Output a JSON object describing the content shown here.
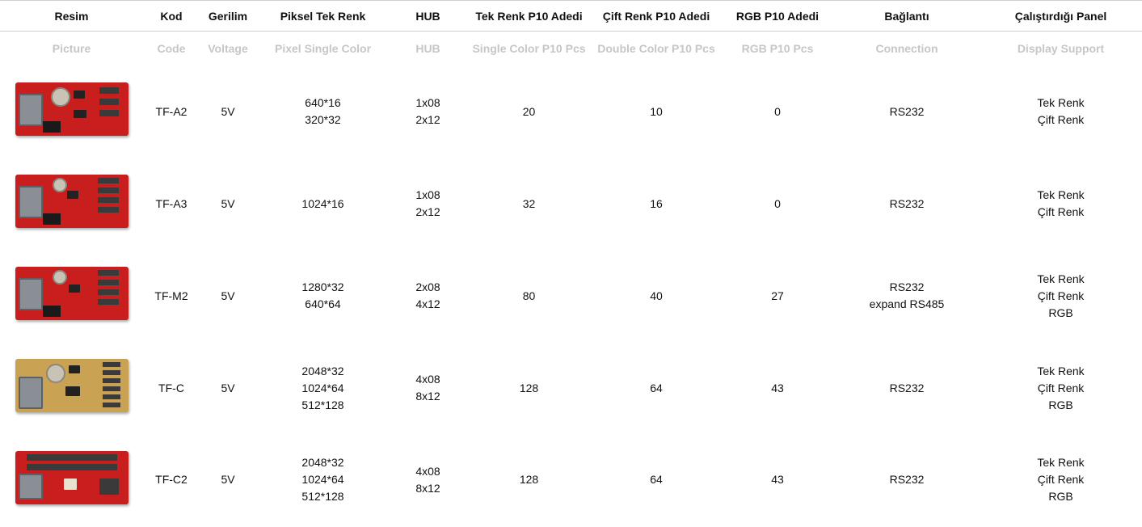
{
  "headers": {
    "tr": [
      "Resim",
      "Kod",
      "Gerilim",
      "Piksel Tek Renk",
      "HUB",
      "Tek Renk P10 Adedi",
      "Çift Renk P10 Adedi",
      "RGB P10 Adedi",
      "Bağlantı",
      "Çalıştırdığı Panel"
    ],
    "en": [
      "Picture",
      "Code",
      "Voltage",
      "Pixel Single Color",
      "HUB",
      "Single Color P10 Pcs",
      "Double Color P10 Pcs",
      "RGB P10 Pcs",
      "Connection",
      "Display Support"
    ]
  },
  "rows": [
    {
      "image": "controller-board-red",
      "code": "TF-A2",
      "voltage": "5V",
      "pixel": [
        "640*16",
        "320*32"
      ],
      "hub": [
        "1x08",
        "2x12"
      ],
      "single": "20",
      "double": "10",
      "rgb": "0",
      "connection": [
        "RS232"
      ],
      "support": [
        "Tek Renk",
        "Çift Renk"
      ]
    },
    {
      "image": "controller-board-red",
      "code": "TF-A3",
      "voltage": "5V",
      "pixel": [
        "1024*16"
      ],
      "hub": [
        "1x08",
        "2x12"
      ],
      "single": "32",
      "double": "16",
      "rgb": "0",
      "connection": [
        "RS232"
      ],
      "support": [
        "Tek Renk",
        "Çift Renk"
      ]
    },
    {
      "image": "controller-board-red",
      "code": "TF-M2",
      "voltage": "5V",
      "pixel": [
        "1280*32",
        "640*64"
      ],
      "hub": [
        "2x08",
        "4x12"
      ],
      "single": "80",
      "double": "40",
      "rgb": "27",
      "connection": [
        "RS232",
        "expand RS485"
      ],
      "support": [
        "Tek Renk",
        "Çift Renk",
        "RGB"
      ]
    },
    {
      "image": "controller-board-gold",
      "code": "TF-C",
      "voltage": "5V",
      "pixel": [
        "2048*32",
        "1024*64",
        "512*128"
      ],
      "hub": [
        "4x08",
        "8x12"
      ],
      "single": "128",
      "double": "64",
      "rgb": "43",
      "connection": [
        "RS232"
      ],
      "support": [
        "Tek Renk",
        "Çift Renk",
        "RGB"
      ]
    },
    {
      "image": "controller-board-red",
      "code": "TF-C2",
      "voltage": "5V",
      "pixel": [
        "2048*32",
        "1024*64",
        "512*128"
      ],
      "hub": [
        "4x08",
        "8x12"
      ],
      "single": "128",
      "double": "64",
      "rgb": "43",
      "connection": [
        "RS232"
      ],
      "support": [
        "Tek Renk",
        "Çift Renk",
        "RGB"
      ]
    }
  ],
  "colors": {
    "header_en": "#c6c6c6",
    "board_red": "#c81e1e",
    "board_gold": "#c9a253"
  }
}
